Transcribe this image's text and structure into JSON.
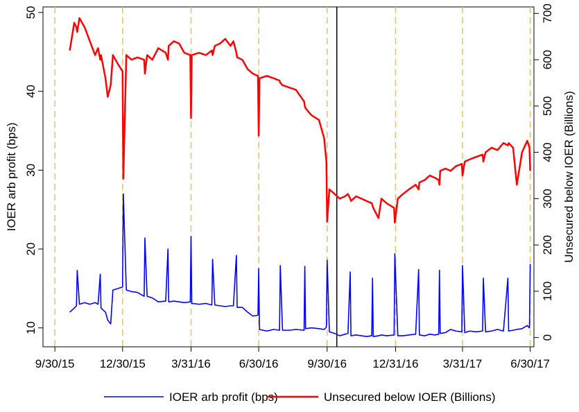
{
  "chart_data": {
    "type": "line",
    "y_label": "IOER arb profit (bps)",
    "y2_label": "Unsecured below IOER (Billions)",
    "x": [
      "10/20/15",
      "10/26/15",
      "10/29/15",
      "10/30/15",
      "11/2/15",
      "11/9/15",
      "11/16/15",
      "11/23/15",
      "11/27/15",
      "11/30/15",
      "12/1/15",
      "12/7/15",
      "12/10/15",
      "12/14/15",
      "12/17/15",
      "12/24/15",
      "12/30/15",
      "12/31/15",
      "1/4/16",
      "1/11/16",
      "1/19/16",
      "1/28/16",
      "1/29/16",
      "2/1/16",
      "2/8/16",
      "2/16/16",
      "2/26/16",
      "2/29/16",
      "3/1/16",
      "3/8/16",
      "3/15/16",
      "3/22/16",
      "3/30/16",
      "3/31/16",
      "4/1/16",
      "4/11/16",
      "4/20/16",
      "4/28/16",
      "4/29/16",
      "5/2/16",
      "5/9/16",
      "5/16/16",
      "5/23/16",
      "5/27/16",
      "5/31/16",
      "6/1/16",
      "6/8/16",
      "6/15/16",
      "6/22/16",
      "6/29/16",
      "6/30/16",
      "7/1/16",
      "7/11/16",
      "7/20/16",
      "7/28/16",
      "7/29/16",
      "8/1/16",
      "8/10/16",
      "8/19/16",
      "8/30/16",
      "8/31/16",
      "9/1/16",
      "9/9/16",
      "9/19/16",
      "9/26/16",
      "9/29/16",
      "9/30/16",
      "10/3/16",
      "10/10/16",
      "10/17/16",
      "10/24/16",
      "10/28/16",
      "10/31/16",
      "11/1/16",
      "11/8/16",
      "11/15/16",
      "11/22/16",
      "11/29/16",
      "11/30/16",
      "12/1/16",
      "12/8/16",
      "12/12/16",
      "12/19/16",
      "12/29/16",
      "12/30/16",
      "1/3/17",
      "1/10/17",
      "1/18/17",
      "1/27/17",
      "1/31/17",
      "2/1/17",
      "2/8/17",
      "2/15/17",
      "2/22/17",
      "2/27/17",
      "2/28/17",
      "3/1/17",
      "3/8/17",
      "3/15/17",
      "3/22/17",
      "3/30/17",
      "3/31/17",
      "4/3/17",
      "4/10/17",
      "4/18/17",
      "4/27/17",
      "4/28/17",
      "5/1/17",
      "5/9/17",
      "5/17/17",
      "5/25/17",
      "5/31/17",
      "6/1/17",
      "6/7/17",
      "6/12/17",
      "6/19/17",
      "6/26/17",
      "6/29/17",
      "6/30/17"
    ],
    "series": [
      {
        "name": "IOER arb profit (bps)",
        "color": "#0000ff",
        "axis": "y",
        "values": [
          12.0,
          12.5,
          12.8,
          17.3,
          13.0,
          13.2,
          13.0,
          13.2,
          13.0,
          16.8,
          12.5,
          12.0,
          11.0,
          10.5,
          14.8,
          15.0,
          15.2,
          27.0,
          14.8,
          14.6,
          14.5,
          14.0,
          21.4,
          14.0,
          13.8,
          13.3,
          13.4,
          20.0,
          13.3,
          13.4,
          13.3,
          13.2,
          13.3,
          21.6,
          13.1,
          13.0,
          13.1,
          12.9,
          18.7,
          12.9,
          12.8,
          12.7,
          12.8,
          12.8,
          19.2,
          12.6,
          12.6,
          12.0,
          11.5,
          11.6,
          17.5,
          9.8,
          9.6,
          9.8,
          9.7,
          17.9,
          9.7,
          9.7,
          9.8,
          9.7,
          17.8,
          9.9,
          10.0,
          9.9,
          9.8,
          10.1,
          18.6,
          9.5,
          9.3,
          9.0,
          9.2,
          9.3,
          17.1,
          9.0,
          9.1,
          9.0,
          8.9,
          9.0,
          16.3,
          8.9,
          9.0,
          9.1,
          9.0,
          9.1,
          19.4,
          9.0,
          9.0,
          9.1,
          9.2,
          17.4,
          9.1,
          9.0,
          9.2,
          9.1,
          9.2,
          17.3,
          9.3,
          9.4,
          9.8,
          9.6,
          9.5,
          17.9,
          9.4,
          9.6,
          9.5,
          9.6,
          16.3,
          9.5,
          9.6,
          9.8,
          9.6,
          16.3,
          9.6,
          9.7,
          9.8,
          9.9,
          10.3,
          10.0,
          18.1
        ]
      },
      {
        "name": "Unsecured below IOER (Billions)",
        "color": "#ff0000",
        "axis": "y2",
        "values": [
          620,
          680,
          670,
          660,
          690,
          670,
          640,
          610,
          625,
          600,
          610,
          560,
          520,
          545,
          610,
          590,
          575,
          343,
          610,
          600,
          605,
          600,
          570,
          610,
          600,
          625,
          615,
          600,
          630,
          640,
          635,
          615,
          610,
          474,
          610,
          615,
          610,
          620,
          610,
          630,
          635,
          645,
          630,
          640,
          615,
          605,
          600,
          580,
          570,
          565,
          436,
          560,
          565,
          560,
          555,
          550,
          545,
          540,
          535,
          510,
          500,
          495,
          480,
          470,
          430,
          380,
          250,
          320,
          310,
          300,
          305,
          310,
          300,
          295,
          305,
          300,
          295,
          290,
          285,
          280,
          258,
          300,
          290,
          280,
          248,
          300,
          310,
          320,
          330,
          320,
          335,
          340,
          350,
          345,
          340,
          330,
          360,
          365,
          360,
          370,
          375,
          350,
          380,
          385,
          390,
          395,
          380,
          400,
          410,
          405,
          420,
          415,
          420,
          410,
          330,
          400,
          425,
          410,
          360
        ]
      }
    ],
    "xlim": [
      "9/14/15",
      "7/5/17"
    ],
    "xticks": [
      "9/30/15",
      "12/30/15",
      "3/31/16",
      "6/30/16",
      "9/30/16",
      "12/31/16",
      "3/31/17",
      "6/30/17"
    ],
    "x_grid": true,
    "x_grid_color": "#e0c070",
    "vline": "10/13/16",
    "vline_color": "#000000",
    "ylim": [
      7.6,
      50.7
    ],
    "yticks": [
      10,
      20,
      30,
      40,
      50
    ],
    "y2lim": [
      -20,
      714
    ],
    "y2ticks": [
      0,
      100,
      200,
      300,
      400,
      500,
      600,
      700
    ],
    "legend": "bottom"
  }
}
